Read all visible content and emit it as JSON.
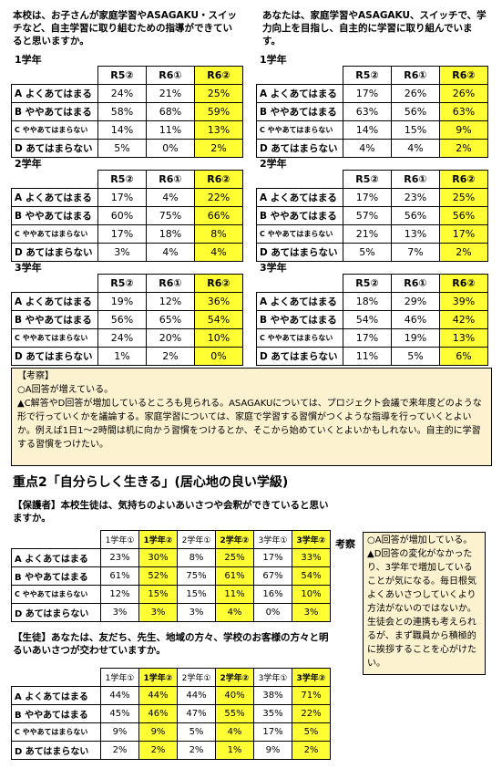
{
  "top": {
    "left_question": "本校は、お子さんが家庭学習やASAGAKU・スイッチなど、自主学習に取り組むための指導ができていると思いますか。",
    "right_question": "あなたは、家庭学習やASAGAKU、スイッチで、学力向上を目指し、自主的に学習に取り組んでいます。",
    "headers": [
      "R5②",
      "R6①",
      "R6②"
    ],
    "row_labels": [
      "A よくあてはまる",
      "B ややあてはまる",
      "C ややあてはまらない",
      "D あてはまらない"
    ],
    "left_groups": [
      {
        "grade": "1学年",
        "rows": [
          [
            "24%",
            "21%",
            "25%"
          ],
          [
            "58%",
            "68%",
            "59%"
          ],
          [
            "14%",
            "11%",
            "13%"
          ],
          [
            "5%",
            "0%",
            "2%"
          ]
        ]
      },
      {
        "grade": "2学年",
        "rows": [
          [
            "17%",
            "4%",
            "22%"
          ],
          [
            "60%",
            "75%",
            "66%"
          ],
          [
            "17%",
            "18%",
            "8%"
          ],
          [
            "3%",
            "4%",
            "4%"
          ]
        ]
      },
      {
        "grade": "3学年",
        "rows": [
          [
            "19%",
            "12%",
            "36%"
          ],
          [
            "56%",
            "65%",
            "54%"
          ],
          [
            "24%",
            "20%",
            "10%"
          ],
          [
            "1%",
            "2%",
            "0%"
          ]
        ]
      }
    ],
    "right_groups": [
      {
        "grade": "1学年",
        "rows": [
          [
            "17%",
            "26%",
            "26%"
          ],
          [
            "63%",
            "56%",
            "63%"
          ],
          [
            "14%",
            "15%",
            "9%"
          ],
          [
            "4%",
            "4%",
            "2%"
          ]
        ]
      },
      {
        "grade": "2学年",
        "rows": [
          [
            "17%",
            "23%",
            "25%"
          ],
          [
            "57%",
            "56%",
            "56%"
          ],
          [
            "21%",
            "13%",
            "17%"
          ],
          [
            "5%",
            "7%",
            "2%"
          ]
        ]
      },
      {
        "grade": "3学年",
        "rows": [
          [
            "18%",
            "29%",
            "39%"
          ],
          [
            "54%",
            "46%",
            "42%"
          ],
          [
            "17%",
            "19%",
            "13%"
          ],
          [
            "11%",
            "5%",
            "6%"
          ]
        ]
      }
    ]
  },
  "consider1": {
    "title": "【考察】",
    "lines": [
      "○A回答が増えている。",
      "▲C解答やD回答が増加しているところも見られる。ASAGAKUについては、プロジェクト会議で来年度どのような形で行っていくかを議論する。家庭学習については、家庭で学習する習慣がつくような指導を行っていくとよいか。例えば1日1～2時間は机に向かう習慣をつけるとか、そこから始めていくとよいかもしれない。自主的に学習する習慣をつけたい。"
    ]
  },
  "section2": {
    "title": "重点2「自分らしく生きる」(居心地の良い学級)",
    "guardian_question": "【保護者】本校生徒は、気持ちのよいあいさつや会釈ができていると思いますか。",
    "student_question": "【生徒】あなたは、友だち、先生、地域の方々、学校のお客様の方々と明るいあいさつが交わせていますか。",
    "headers": [
      "1学年①",
      "1学年②",
      "2学年①",
      "2学年②",
      "3学年①",
      "3学年②"
    ],
    "guardian_rows": [
      [
        "23%",
        "30%",
        "8%",
        "25%",
        "17%",
        "33%"
      ],
      [
        "61%",
        "52%",
        "75%",
        "61%",
        "67%",
        "54%"
      ],
      [
        "12%",
        "15%",
        "15%",
        "11%",
        "16%",
        "10%"
      ],
      [
        "3%",
        "3%",
        "3%",
        "4%",
        "0%",
        "3%"
      ]
    ],
    "student_rows": [
      [
        "44%",
        "44%",
        "44%",
        "40%",
        "38%",
        "71%"
      ],
      [
        "45%",
        "46%",
        "47%",
        "55%",
        "35%",
        "22%"
      ],
      [
        "9%",
        "9%",
        "5%",
        "4%",
        "17%",
        "5%"
      ],
      [
        "2%",
        "2%",
        "2%",
        "1%",
        "9%",
        "2%"
      ]
    ],
    "consider_label": "考察",
    "consider_lines": [
      "○A回答が増加している。",
      "▲D回答の変化がなかったり、3学年で増加していることが気になる。毎日根気よくあいさつしていくより方法がないのではないか。",
      "生徒会との連携も考えられるが、まず職員から積極的に挨拶することを心がけたい。"
    ]
  }
}
